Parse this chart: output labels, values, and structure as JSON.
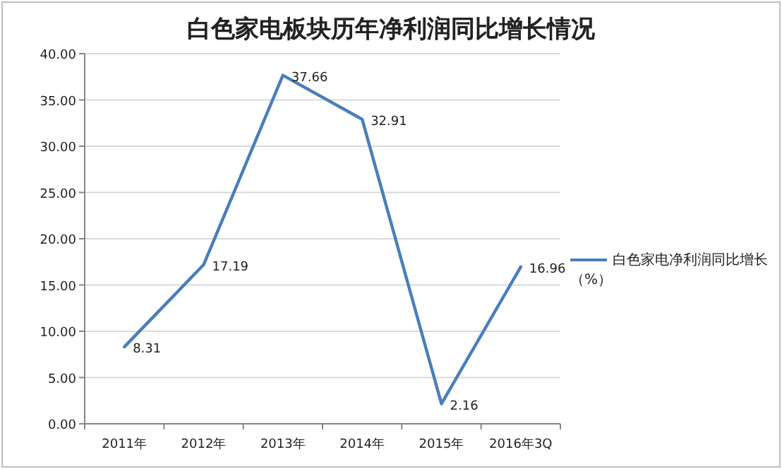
{
  "chart_data": {
    "type": "line",
    "title": "白色家电板块历年净利润同比增长情况",
    "categories": [
      "2011年",
      "2012年",
      "2013年",
      "2014年",
      "2015年",
      "2016年3Q"
    ],
    "series": [
      {
        "name": "白色家电净利润同比增长（%）",
        "color": "#4a7ebb",
        "values": [
          8.31,
          17.19,
          37.66,
          32.91,
          2.16,
          16.96
        ]
      }
    ],
    "ylim": [
      0,
      40
    ],
    "yticks": [
      {
        "value": 0,
        "label": "0.00"
      },
      {
        "value": 5,
        "label": "5.00"
      },
      {
        "value": 10,
        "label": "10.00"
      },
      {
        "value": 15,
        "label": "15.00"
      },
      {
        "value": 20,
        "label": "20.00"
      },
      {
        "value": 25,
        "label": "25.00"
      },
      {
        "value": 30,
        "label": "30.00"
      },
      {
        "value": 35,
        "label": "35.00"
      },
      {
        "value": 40,
        "label": "40.00"
      }
    ],
    "grid": "y",
    "legend": "right",
    "data_labels": true
  }
}
